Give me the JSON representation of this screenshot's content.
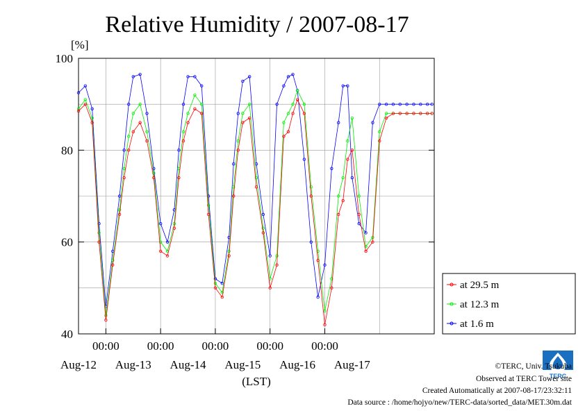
{
  "chart_data": {
    "type": "line",
    "title": "Relative Humidity / 2007-08-17",
    "y_unit": "[%]",
    "xlabel": "(LST)",
    "ylim": [
      40,
      100
    ],
    "y_ticks": [
      40,
      60,
      80,
      100
    ],
    "x_range_days": [
      "2007-08-11 12:00",
      "2007-08-17 24:00"
    ],
    "x_tick_time_labels": [
      "00:00",
      "00:00",
      "00:00",
      "00:00",
      "00:00"
    ],
    "x_day_labels": [
      "Aug-12",
      "Aug-13",
      "Aug-14",
      "Aug-15",
      "Aug-16",
      "Aug-17"
    ],
    "grid": true,
    "legend_position": "right-bottom, outside plot",
    "series": [
      {
        "name": "at 29.5 m",
        "color": "#ff0000",
        "x": [
          "2007-08-11 12:00",
          "2007-08-11 15:00",
          "2007-08-11 18:00",
          "2007-08-11 21:00",
          "2007-08-12 00:00",
          "2007-08-12 03:00",
          "2007-08-12 06:00",
          "2007-08-12 08:00",
          "2007-08-12 10:00",
          "2007-08-12 12:00",
          "2007-08-12 15:00",
          "2007-08-12 18:00",
          "2007-08-12 21:00",
          "2007-08-13 00:00",
          "2007-08-13 03:00",
          "2007-08-13 06:00",
          "2007-08-13 08:00",
          "2007-08-13 10:00",
          "2007-08-13 12:00",
          "2007-08-13 15:00",
          "2007-08-13 18:00",
          "2007-08-13 21:00",
          "2007-08-14 00:00",
          "2007-08-14 03:00",
          "2007-08-14 06:00",
          "2007-08-14 08:00",
          "2007-08-14 10:00",
          "2007-08-14 12:00",
          "2007-08-14 15:00",
          "2007-08-14 18:00",
          "2007-08-14 21:00",
          "2007-08-15 00:00",
          "2007-08-15 03:00",
          "2007-08-15 06:00",
          "2007-08-15 08:00",
          "2007-08-15 10:00",
          "2007-08-15 12:00",
          "2007-08-15 15:00",
          "2007-08-15 18:00",
          "2007-08-15 21:00",
          "2007-08-16 00:00",
          "2007-08-16 03:00",
          "2007-08-16 06:00",
          "2007-08-16 08:00",
          "2007-08-16 10:00",
          "2007-08-16 12:00",
          "2007-08-16 15:00",
          "2007-08-16 18:00",
          "2007-08-16 21:00",
          "2007-08-17 00:00",
          "2007-08-17 03:00",
          "2007-08-17 06:00",
          "2007-08-17 09:00",
          "2007-08-17 12:00",
          "2007-08-17 15:00",
          "2007-08-17 18:00",
          "2007-08-17 21:00",
          "2007-08-17 23:00"
        ],
        "values": [
          88.5,
          90,
          86,
          60,
          43,
          55,
          66,
          74,
          80,
          84,
          86,
          82,
          74,
          58,
          57,
          63,
          74,
          82,
          86,
          89,
          88,
          66,
          50,
          48,
          57,
          70,
          80,
          86,
          87,
          72,
          62,
          50,
          55,
          83,
          84,
          88,
          91,
          88,
          70,
          56,
          42,
          50,
          66,
          69,
          78,
          80,
          66,
          58,
          60,
          82,
          87,
          88,
          88,
          88,
          88,
          88,
          88,
          88
        ]
      },
      {
        "name": "at 12.3 m",
        "color": "#00ee00",
        "x": [
          "2007-08-11 12:00",
          "2007-08-11 15:00",
          "2007-08-11 18:00",
          "2007-08-11 21:00",
          "2007-08-12 00:00",
          "2007-08-12 03:00",
          "2007-08-12 06:00",
          "2007-08-12 08:00",
          "2007-08-12 10:00",
          "2007-08-12 12:00",
          "2007-08-12 15:00",
          "2007-08-12 18:00",
          "2007-08-12 21:00",
          "2007-08-13 00:00",
          "2007-08-13 03:00",
          "2007-08-13 06:00",
          "2007-08-13 08:00",
          "2007-08-13 10:00",
          "2007-08-13 12:00",
          "2007-08-13 15:00",
          "2007-08-13 18:00",
          "2007-08-13 21:00",
          "2007-08-14 00:00",
          "2007-08-14 03:00",
          "2007-08-14 06:00",
          "2007-08-14 08:00",
          "2007-08-14 10:00",
          "2007-08-14 12:00",
          "2007-08-14 15:00",
          "2007-08-14 18:00",
          "2007-08-14 21:00",
          "2007-08-15 00:00",
          "2007-08-15 03:00",
          "2007-08-15 06:00",
          "2007-08-15 08:00",
          "2007-08-15 10:00",
          "2007-08-15 12:00",
          "2007-08-15 15:00",
          "2007-08-15 18:00",
          "2007-08-15 21:00",
          "2007-08-16 00:00",
          "2007-08-16 03:00",
          "2007-08-16 06:00",
          "2007-08-16 08:00",
          "2007-08-16 10:00",
          "2007-08-16 12:00",
          "2007-08-16 15:00",
          "2007-08-16 18:00",
          "2007-08-16 21:00",
          "2007-08-17 00:00",
          "2007-08-17 03:00",
          "2007-08-17 06:00",
          "2007-08-17 09:00",
          "2007-08-17 12:00",
          "2007-08-17 15:00",
          "2007-08-17 18:00",
          "2007-08-17 21:00",
          "2007-08-17 23:00"
        ],
        "values": [
          89,
          91,
          87,
          62,
          44,
          56,
          67,
          76,
          83,
          88,
          90,
          84,
          75,
          60,
          58,
          64,
          76,
          84,
          88,
          92,
          90,
          68,
          51,
          49,
          58,
          72,
          82,
          88,
          90,
          74,
          63,
          52,
          57,
          86,
          88,
          90,
          93,
          90,
          72,
          58,
          45,
          52,
          70,
          74,
          82,
          87,
          70,
          59,
          61,
          84,
          88,
          88,
          88,
          88,
          88,
          88,
          88,
          88
        ]
      },
      {
        "name": "at 1.6 m",
        "color": "#0000ff",
        "x": [
          "2007-08-11 12:00",
          "2007-08-11 15:00",
          "2007-08-11 18:00",
          "2007-08-11 21:00",
          "2007-08-12 00:00",
          "2007-08-12 03:00",
          "2007-08-12 06:00",
          "2007-08-12 08:00",
          "2007-08-12 10:00",
          "2007-08-12 12:00",
          "2007-08-12 15:00",
          "2007-08-12 18:00",
          "2007-08-12 21:00",
          "2007-08-13 00:00",
          "2007-08-13 03:00",
          "2007-08-13 06:00",
          "2007-08-13 08:00",
          "2007-08-13 10:00",
          "2007-08-13 12:00",
          "2007-08-13 15:00",
          "2007-08-13 18:00",
          "2007-08-13 21:00",
          "2007-08-14 00:00",
          "2007-08-14 03:00",
          "2007-08-14 06:00",
          "2007-08-14 08:00",
          "2007-08-14 10:00",
          "2007-08-14 12:00",
          "2007-08-14 15:00",
          "2007-08-14 18:00",
          "2007-08-14 21:00",
          "2007-08-15 00:00",
          "2007-08-15 03:00",
          "2007-08-15 06:00",
          "2007-08-15 08:00",
          "2007-08-15 10:00",
          "2007-08-15 12:00",
          "2007-08-15 15:00",
          "2007-08-15 18:00",
          "2007-08-15 21:00",
          "2007-08-16 00:00",
          "2007-08-16 03:00",
          "2007-08-16 06:00",
          "2007-08-16 08:00",
          "2007-08-16 10:00",
          "2007-08-16 12:00",
          "2007-08-16 15:00",
          "2007-08-16 18:00",
          "2007-08-16 21:00",
          "2007-08-17 00:00",
          "2007-08-17 03:00",
          "2007-08-17 06:00",
          "2007-08-17 09:00",
          "2007-08-17 12:00",
          "2007-08-17 15:00",
          "2007-08-17 18:00",
          "2007-08-17 21:00",
          "2007-08-17 23:00"
        ],
        "values": [
          92.5,
          94,
          89,
          64,
          46,
          58,
          70,
          80,
          90,
          96,
          96.5,
          88,
          76,
          64,
          60,
          67,
          80,
          90,
          96,
          96,
          94,
          70,
          52,
          51,
          61,
          77,
          88,
          95,
          96,
          77,
          66,
          57,
          90,
          94,
          96,
          96.5,
          93,
          78,
          60,
          48,
          55,
          76,
          86,
          94,
          94,
          74,
          64,
          62,
          86,
          90,
          90,
          90,
          90,
          90,
          90,
          90,
          90,
          90
        ]
      }
    ]
  },
  "footer": {
    "copyright": "©TERC, Univ. Tsukuba",
    "observed": "Observed at TERC Tower site",
    "created": "Created Automatically at 2007-08-17/23:32:11",
    "source": "Data source : /home/hojyo/new/TERC-data/sorted_data/MET.30m.dat",
    "logo_text": "TERC"
  }
}
